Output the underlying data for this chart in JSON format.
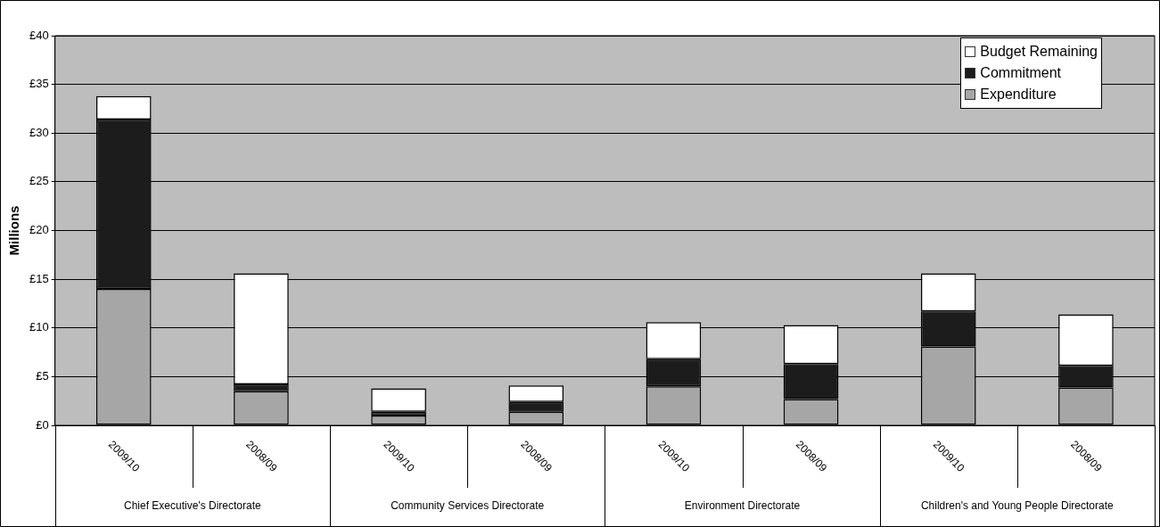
{
  "chart_data": {
    "type": "bar",
    "stacked": true,
    "ylabel": "Millions",
    "categories": [
      "2009/10",
      "2008/09",
      "2009/10",
      "2008/09",
      "2009/10",
      "2008/09",
      "2009/10",
      "2008/09"
    ],
    "annotations": [
      "Chief Executive's Directorate",
      "Community Services Directorate",
      "Environment Directorate",
      "Children's and Young People Directorate"
    ],
    "series": [
      {
        "name": "Expenditure",
        "color": "#a6a6a6",
        "values": [
          14.0,
          3.5,
          1.0,
          1.4,
          4.0,
          2.7,
          8.1,
          3.9
        ]
      },
      {
        "name": "Commitment",
        "color": "#1c1c1c",
        "values": [
          17.4,
          0.7,
          0.4,
          1.0,
          2.8,
          3.6,
          3.6,
          2.2
        ]
      },
      {
        "name": "Budget Remaining",
        "color": "#ffffff",
        "values": [
          2.4,
          11.4,
          2.4,
          1.7,
          3.8,
          4.0,
          3.9,
          5.3
        ]
      }
    ],
    "ylim": [
      0,
      40
    ],
    "yticks": [
      {
        "value": 0,
        "label": "£0"
      },
      {
        "value": 5,
        "label": "£5"
      },
      {
        "value": 10,
        "label": "£10"
      },
      {
        "value": 15,
        "label": "£15"
      },
      {
        "value": 20,
        "label": "£20"
      },
      {
        "value": 25,
        "label": "£25"
      },
      {
        "value": 30,
        "label": "£30"
      },
      {
        "value": 35,
        "label": "£35"
      },
      {
        "value": 40,
        "label": "£40"
      }
    ],
    "grid": "y",
    "legend": "top right"
  }
}
